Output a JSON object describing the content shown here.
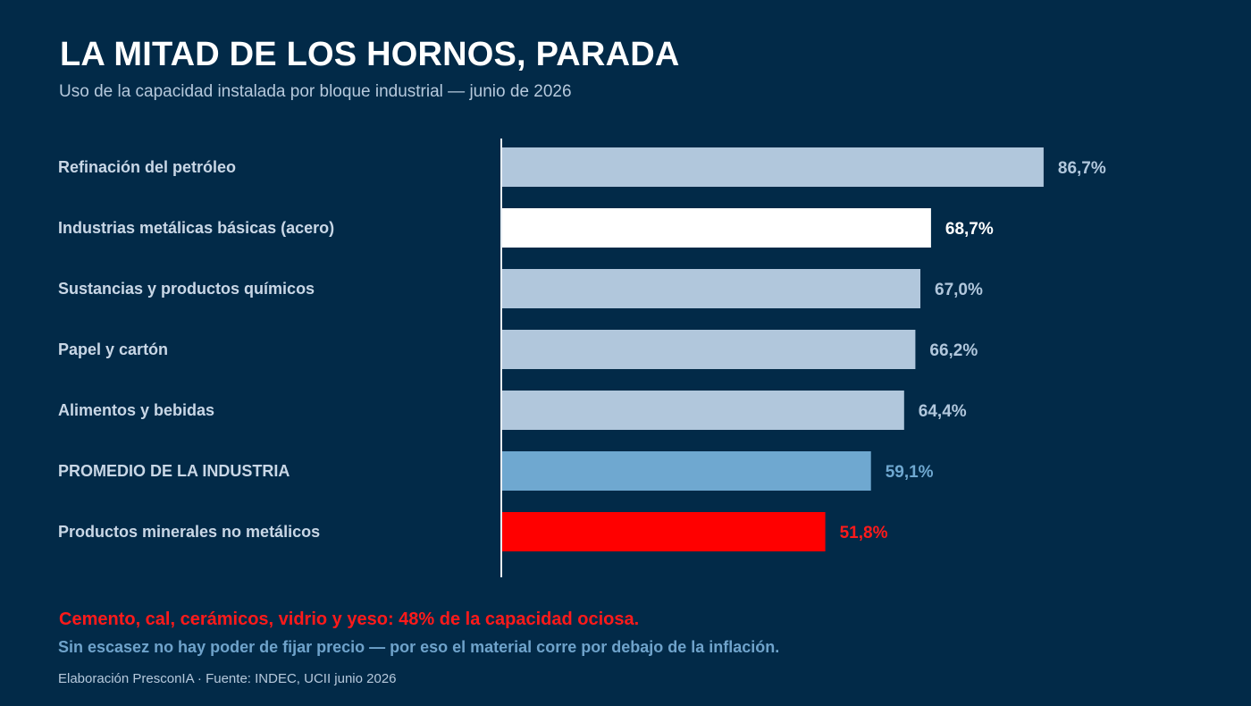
{
  "title": "LA MITAD DE LOS HORNOS, PARADA",
  "subtitle": "Uso de la capacidad instalada por bloque industrial — junio de 2026",
  "chart_data": {
    "type": "bar",
    "orientation": "horizontal",
    "categories": [
      "Refinación del petróleo",
      "Industrias metálicas básicas (acero)",
      "Sustancias y productos químicos",
      "Papel y cartón",
      "Alimentos y bebidas",
      "PROMEDIO DE LA INDUSTRIA",
      "Productos minerales no metálicos"
    ],
    "values": [
      86.7,
      68.7,
      67.0,
      66.2,
      64.4,
      59.1,
      51.8
    ],
    "value_labels": [
      "86,7%",
      "68,7%",
      "67,0%",
      "66,2%",
      "64,4%",
      "59,1%",
      "51,8%"
    ],
    "bar_colors": [
      "#b1c7dc",
      "#ffffff",
      "#b1c7dc",
      "#b1c7dc",
      "#b1c7dc",
      "#6fa8d0",
      "#ff0000"
    ],
    "label_colors": [
      "#b1c7dc",
      "#ffffff",
      "#b1c7dc",
      "#b1c7dc",
      "#b1c7dc",
      "#6fa8d0",
      "#ff1a1a"
    ],
    "xlim": [
      0,
      100
    ],
    "grid": false,
    "legend": "none"
  },
  "footnote_highlight": "Cemento, cal, cerámicos, vidrio y yeso: 48% de la capacidad ociosa.",
  "footnote_note": "Sin escasez no hay poder de fijar precio — por eso el material corre por debajo de la inflación.",
  "source": "Elaboración PresconIA · Fuente: INDEC, UCII junio 2026",
  "colors": {
    "background": "#022a48",
    "highlight_red": "#ff0000",
    "average_blue": "#6fa8d0",
    "bar_default": "#b1c7dc"
  }
}
